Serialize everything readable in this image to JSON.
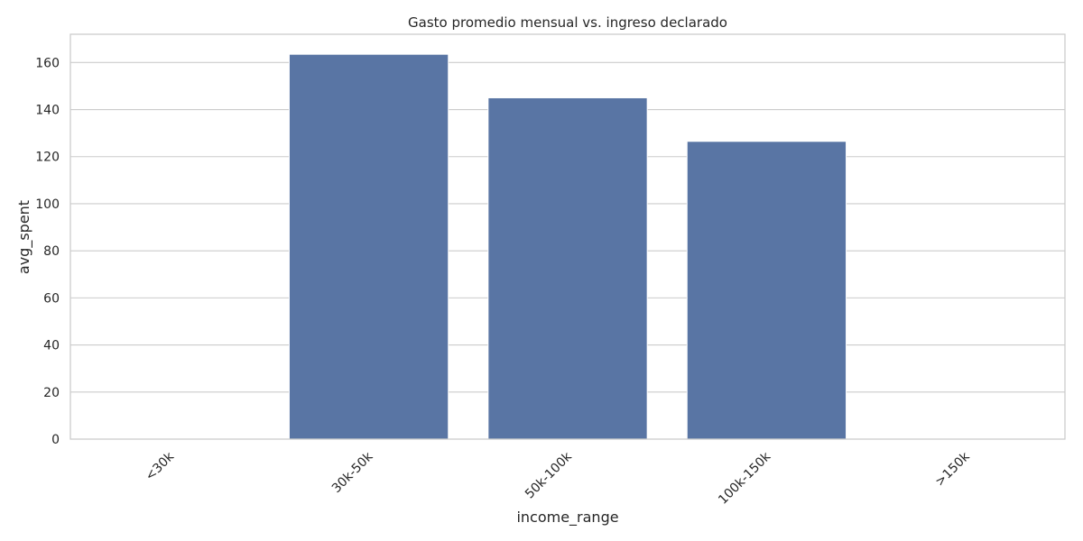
{
  "chart_data": {
    "type": "bar",
    "title": "Gasto promedio mensual vs. ingreso declarado",
    "xlabel": "income_range",
    "ylabel": "avg_spent",
    "categories": [
      "<30k",
      "30k-50k",
      "50k-100k",
      "100k-150k",
      ">150k"
    ],
    "values": [
      0,
      163.5,
      145,
      126.5,
      0
    ],
    "ylim": [
      0,
      172
    ],
    "yticks": [
      0,
      20,
      40,
      60,
      80,
      100,
      120,
      140,
      160
    ],
    "grid": true,
    "legend": "none",
    "bar_color": "#5975a4",
    "grid_color": "#cccccc",
    "spine_color": "#cccccc"
  }
}
